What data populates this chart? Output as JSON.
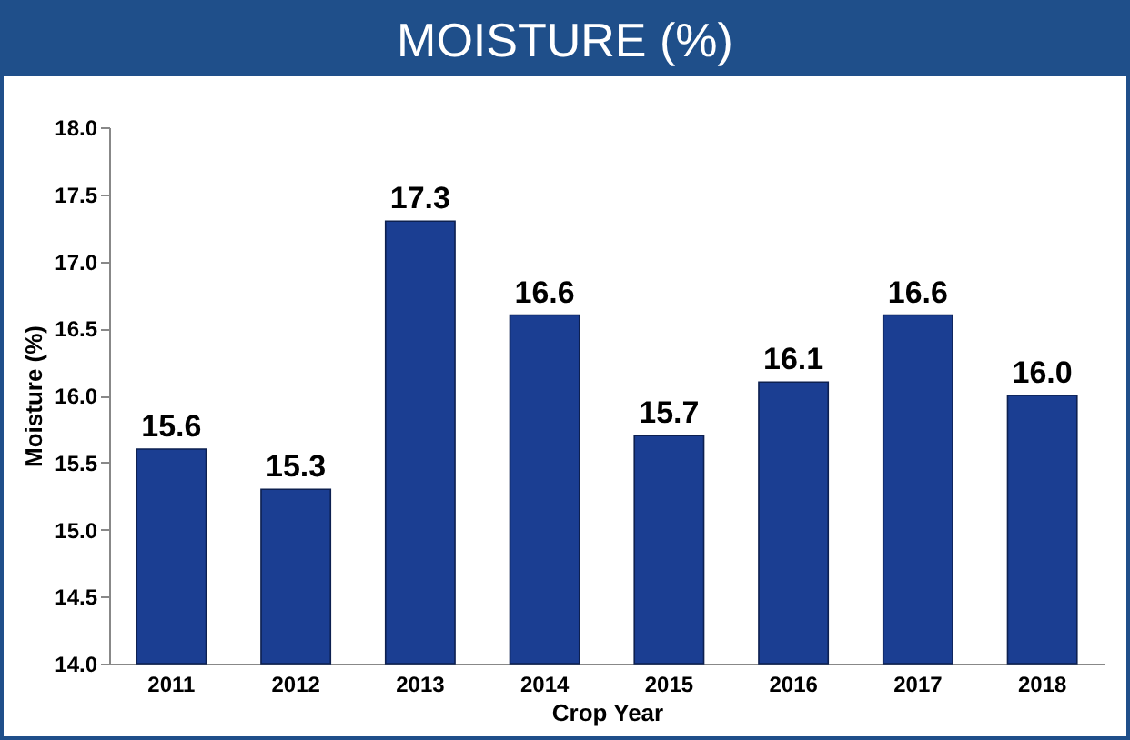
{
  "chart_data": {
    "type": "bar",
    "title": "MOISTURE (%)",
    "xlabel": "Crop Year",
    "ylabel": "Moisture (%)",
    "categories": [
      "2011",
      "2012",
      "2013",
      "2014",
      "2015",
      "2016",
      "2017",
      "2018"
    ],
    "values": [
      15.6,
      15.3,
      17.3,
      16.6,
      15.7,
      16.1,
      16.6,
      16.0
    ],
    "value_labels": [
      "15.6",
      "15.3",
      "17.3",
      "16.6",
      "15.7",
      "16.1",
      "16.6",
      "16.0"
    ],
    "color": "#1b3e92",
    "ylim": [
      14,
      18
    ],
    "yticks": [
      {
        "value": 14,
        "label": "14.0"
      },
      {
        "value": 14.5,
        "label": "14.5"
      },
      {
        "value": 15,
        "label": "15.0"
      },
      {
        "value": 15.5,
        "label": "15.5"
      },
      {
        "value": 16,
        "label": "16.0"
      },
      {
        "value": 16.5,
        "label": "16.5"
      },
      {
        "value": 17,
        "label": "17.0"
      },
      {
        "value": 17.5,
        "label": "17.5"
      },
      {
        "value": 18,
        "label": "18.0"
      }
    ],
    "grid": false
  }
}
